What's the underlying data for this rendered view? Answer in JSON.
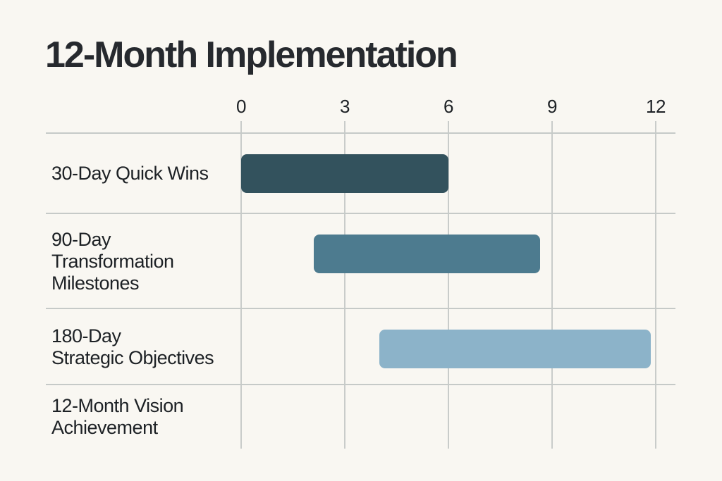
{
  "page": {
    "background_color": "#f9f7f2",
    "text_color": "#1d2125",
    "title_color": "#26292e",
    "grid_color": "#c9ccca"
  },
  "title": "12-Month Implementation",
  "chart_data": {
    "type": "bar",
    "subtype": "horizontal-gantt",
    "title": "12-Month Implementation",
    "xlabel": "",
    "ylabel": "",
    "xlim": [
      0,
      12
    ],
    "x_ticks": [
      0,
      3,
      6,
      9,
      12
    ],
    "x_tick_labels": [
      "0",
      "3",
      "6",
      "9",
      "12"
    ],
    "grid": true,
    "legend": false,
    "categories": [
      "30-Day Quick Wins",
      "90-Day Transformation Milestones",
      "180-Day Strategic Objectives",
      "12-Month Vision Achievement"
    ],
    "bars": [
      {
        "label": "30-Day Quick Wins",
        "start": 0,
        "end": 6,
        "color": "#33525d"
      },
      {
        "label": "90-Day Transformation Milestones",
        "start": 2.1,
        "end": 8.65,
        "color": "#4d7b8f"
      },
      {
        "label": "180-Day Strategic Objectives",
        "start": 4,
        "end": 11.85,
        "color": "#8cb3c9"
      },
      {
        "label": "12-Month Vision Achievement",
        "start": null,
        "end": null,
        "color": null
      }
    ]
  },
  "rows": [
    {
      "label_lines": [
        "30-Day Quick Wins"
      ]
    },
    {
      "label_lines": [
        "90-Day",
        "Transformation",
        "Milestones"
      ]
    },
    {
      "label_lines": [
        "180-Day",
        "Strategic Objectives"
      ]
    },
    {
      "label_lines": [
        "12-Month Vision",
        "Achievement"
      ]
    }
  ]
}
